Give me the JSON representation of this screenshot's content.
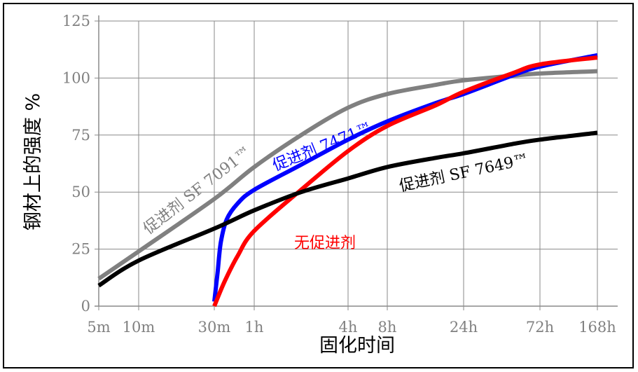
{
  "chart_data": {
    "type": "line",
    "title": "",
    "xlabel": "固化时间",
    "ylabel": "钢材上的强度 %",
    "grid": true,
    "x_ticks": [
      {
        "label": "5m",
        "hours": 0.0833
      },
      {
        "label": "10m",
        "hours": 0.1667
      },
      {
        "label": "30m",
        "hours": 0.5
      },
      {
        "label": "1h",
        "hours": 1
      },
      {
        "label": "4h",
        "hours": 4
      },
      {
        "label": "8h",
        "hours": 8
      },
      {
        "label": "24h",
        "hours": 24
      },
      {
        "label": "72h",
        "hours": 72
      },
      {
        "label": "168h",
        "hours": 168
      }
    ],
    "ylim": [
      0,
      125
    ],
    "y_ticks": [
      "0",
      "25",
      "50",
      "75",
      "100",
      "125"
    ],
    "y_tick_values": [
      0,
      25,
      50,
      75,
      100,
      125
    ],
    "series": [
      {
        "name": "促进剂 SF 7091™",
        "label_text": "促进剂  SF 7091™",
        "color": "#808080",
        "points": [
          [
            0.0833,
            12
          ],
          [
            0.1667,
            24
          ],
          [
            0.5,
            47
          ],
          [
            1,
            61
          ],
          [
            2,
            75
          ],
          [
            4,
            87
          ],
          [
            8,
            93
          ],
          [
            16,
            97
          ],
          [
            24,
            99
          ],
          [
            48,
            101
          ],
          [
            72,
            102
          ],
          [
            168,
            103
          ]
        ]
      },
      {
        "name": "促进剂 7471™",
        "label_text": "促进剂  7471™",
        "color": "#0000ff",
        "points": [
          [
            0.5,
            2
          ],
          [
            0.53,
            15
          ],
          [
            0.56,
            28
          ],
          [
            0.62,
            38
          ],
          [
            0.75,
            45
          ],
          [
            1,
            51
          ],
          [
            2,
            62
          ],
          [
            4,
            73
          ],
          [
            8,
            81
          ],
          [
            16,
            89
          ],
          [
            24,
            93
          ],
          [
            48,
            101
          ],
          [
            72,
            105
          ],
          [
            168,
            110
          ]
        ]
      },
      {
        "name": "无促进剂",
        "label_text": "无促进剂",
        "color": "#ff0000",
        "points": [
          [
            0.5,
            0
          ],
          [
            0.6,
            11
          ],
          [
            0.75,
            22
          ],
          [
            1,
            33
          ],
          [
            2,
            51
          ],
          [
            4,
            68
          ],
          [
            8,
            79
          ],
          [
            16,
            88
          ],
          [
            24,
            94
          ],
          [
            48,
            102
          ],
          [
            72,
            106
          ],
          [
            168,
            109
          ]
        ]
      },
      {
        "name": "促进剂 SF 7649™",
        "label_text": "促进剂  SF 7649™",
        "color": "#000000",
        "points": [
          [
            0.0833,
            9
          ],
          [
            0.1667,
            20
          ],
          [
            0.5,
            34
          ],
          [
            1,
            42
          ],
          [
            2,
            50
          ],
          [
            4,
            56
          ],
          [
            8,
            61
          ],
          [
            16,
            65
          ],
          [
            24,
            67
          ],
          [
            48,
            71
          ],
          [
            72,
            73
          ],
          [
            168,
            76
          ]
        ]
      }
    ]
  }
}
